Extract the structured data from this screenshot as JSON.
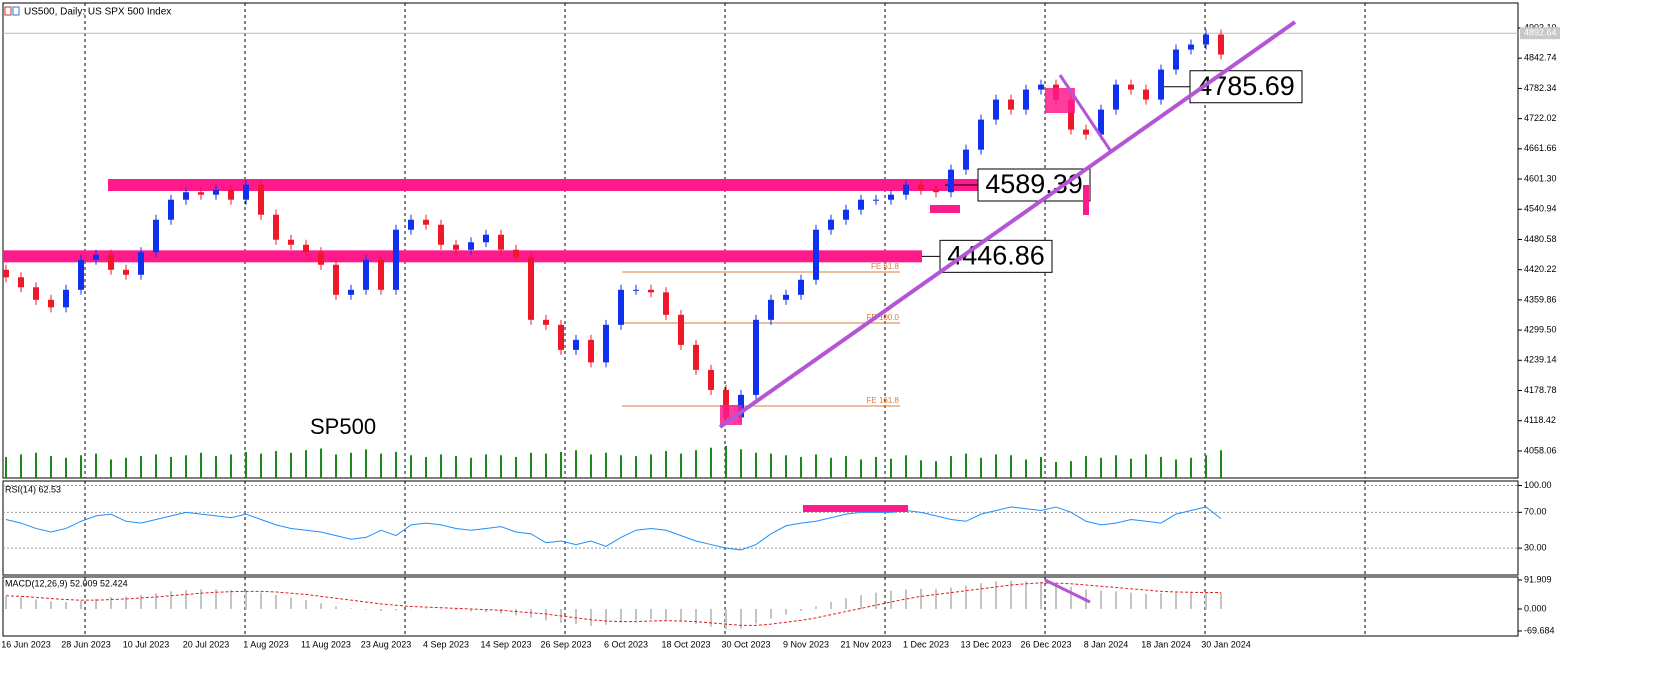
{
  "chart_data": [
    {
      "type": "candlestick",
      "title": "US500, Daily: US SPX 500 Index",
      "annotation": "SP500",
      "categories": [
        "16 Jun 2023",
        "28 Jun 2023",
        "10 Jul 2023",
        "20 Jul 2023",
        "1 Aug 2023",
        "11 Aug 2023",
        "23 Aug 2023",
        "4 Sep 2023",
        "14 Sep 2023",
        "26 Sep 2023",
        "6 Oct 2023",
        "18 Oct 2023",
        "30 Oct 2023",
        "9 Nov 2023",
        "21 Nov 2023",
        "1 Dec 2023",
        "13 Dec 2023",
        "26 Dec 2023",
        "8 Jan 2024",
        "18 Jan 2024",
        "30 Jan 2024"
      ],
      "open": [
        4420,
        4405,
        4385,
        4360,
        4345,
        4380,
        4440,
        4450,
        4420,
        4410,
        4455,
        4520,
        4560,
        4575,
        4570,
        4580,
        4560,
        4590,
        4530,
        4480,
        4470,
        4455,
        4430,
        4370,
        4380,
        4440,
        4380,
        4500,
        4520,
        4510,
        4470,
        4460,
        4475,
        4490,
        4460,
        4445,
        4320,
        4310,
        4260,
        4280,
        4235,
        4310,
        4380,
        4380,
        4375,
        4330,
        4270,
        4220,
        4180,
        4125,
        4170,
        4320,
        4360,
        4370,
        4400,
        4500,
        4520,
        4540,
        4560,
        4560,
        4570,
        4590,
        4580,
        4575,
        4620,
        4660,
        4720,
        4760,
        4740,
        4780,
        4790,
        4760,
        4700,
        4690,
        4740,
        4790,
        4780,
        4760,
        4820,
        4860,
        4870,
        4890
      ],
      "high": [
        4430,
        4415,
        4395,
        4370,
        4390,
        4450,
        4460,
        4460,
        4430,
        4465,
        4530,
        4570,
        4585,
        4585,
        4590,
        4590,
        4600,
        4600,
        4540,
        4490,
        4480,
        4465,
        4440,
        4390,
        4450,
        4450,
        4510,
        4530,
        4530,
        4520,
        4480,
        4485,
        4500,
        4500,
        4470,
        4455,
        4330,
        4320,
        4290,
        4290,
        4320,
        4390,
        4390,
        4390,
        4385,
        4340,
        4280,
        4230,
        4190,
        4180,
        4330,
        4370,
        4380,
        4410,
        4510,
        4530,
        4550,
        4570,
        4570,
        4580,
        4600,
        4600,
        4590,
        4630,
        4670,
        4730,
        4770,
        4770,
        4790,
        4800,
        4800,
        4770,
        4710,
        4750,
        4800,
        4800,
        4790,
        4830,
        4870,
        4880,
        4900,
        4900
      ],
      "low": [
        4395,
        4375,
        4350,
        4335,
        4335,
        4370,
        4430,
        4410,
        4400,
        4400,
        4445,
        4510,
        4550,
        4560,
        4560,
        4550,
        4550,
        4520,
        4470,
        4460,
        4445,
        4420,
        4360,
        4360,
        4370,
        4370,
        4370,
        4490,
        4500,
        4460,
        4450,
        4450,
        4465,
        4450,
        4435,
        4310,
        4300,
        4250,
        4250,
        4225,
        4225,
        4300,
        4370,
        4365,
        4320,
        4260,
        4210,
        4170,
        4115,
        4115,
        4160,
        4310,
        4350,
        4360,
        4390,
        4490,
        4510,
        4530,
        4550,
        4550,
        4560,
        4570,
        4565,
        4565,
        4610,
        4650,
        4710,
        4730,
        4730,
        4770,
        4750,
        4690,
        4680,
        4680,
        4730,
        4770,
        4750,
        4750,
        4810,
        4850,
        4860,
        4840
      ],
      "close": [
        4405,
        4385,
        4360,
        4345,
        4380,
        4440,
        4450,
        4420,
        4410,
        4455,
        4520,
        4560,
        4575,
        4570,
        4580,
        4560,
        4590,
        4530,
        4480,
        4470,
        4455,
        4430,
        4370,
        4380,
        4440,
        4380,
        4500,
        4520,
        4510,
        4470,
        4460,
        4475,
        4490,
        4460,
        4445,
        4320,
        4310,
        4260,
        4280,
        4235,
        4310,
        4380,
        4380,
        4375,
        4330,
        4270,
        4220,
        4180,
        4125,
        4170,
        4320,
        4360,
        4370,
        4400,
        4500,
        4520,
        4540,
        4560,
        4560,
        4570,
        4590,
        4580,
        4575,
        4620,
        4660,
        4720,
        4760,
        4740,
        4780,
        4790,
        4760,
        4700,
        4690,
        4740,
        4790,
        4780,
        4760,
        4820,
        4860,
        4870,
        4890,
        4850
      ],
      "volume": [
        25,
        28,
        30,
        26,
        24,
        27,
        29,
        22,
        24,
        26,
        28,
        25,
        27,
        30,
        26,
        28,
        31,
        29,
        32,
        30,
        33,
        35,
        28,
        30,
        34,
        29,
        31,
        27,
        25,
        28,
        26,
        24,
        28,
        27,
        25,
        30,
        29,
        31,
        33,
        28,
        30,
        27,
        26,
        28,
        32,
        29,
        33,
        36,
        38,
        34,
        30,
        29,
        27,
        25,
        28,
        24,
        26,
        22,
        25,
        23,
        27,
        21,
        20,
        26,
        29,
        24,
        28,
        27,
        22,
        25,
        19,
        20,
        26,
        24,
        27,
        23,
        28,
        25,
        22,
        24,
        27,
        33
      ],
      "up_color": "#1030f0",
      "down_color": "#f01828",
      "volume_color": "#1a8a1a",
      "ylim": [
        4004,
        4953
      ],
      "yticks": [
        {
          "value": 4903.1,
          "label": "4903.10"
        },
        4842.74,
        4782.34,
        4722.02,
        4661.66,
        {
          "value": 4601.3,
          "label": "4601.30"
        },
        4540.94,
        4480.58,
        4420.22,
        4359.86,
        {
          "value": 4299.5,
          "label": "4299.50"
        },
        4239.14,
        4178.78,
        4118.42,
        4058.06
      ],
      "last_price": 4892.64,
      "levels": [
        4785.69,
        4589.39,
        4446.86
      ],
      "fib_levels": [
        {
          "label": "FE 61.8",
          "value": 4415.6
        },
        {
          "label": "FE 100.0",
          "value": 4313.7
        },
        {
          "label": "FE 161.8",
          "value": 4147.9
        }
      ]
    },
    {
      "type": "line",
      "title": "RSI(14) 62.53",
      "color": "#1e90ff",
      "grid": true,
      "values": [
        62,
        58,
        52,
        48,
        52,
        60,
        66,
        68,
        60,
        58,
        62,
        66,
        70,
        68,
        66,
        64,
        68,
        62,
        56,
        52,
        50,
        48,
        44,
        40,
        42,
        50,
        44,
        56,
        58,
        56,
        52,
        50,
        52,
        54,
        48,
        46,
        36,
        38,
        34,
        38,
        32,
        42,
        50,
        52,
        50,
        44,
        38,
        34,
        30,
        28,
        34,
        46,
        55,
        58,
        60,
        64,
        68,
        70,
        70,
        70,
        72,
        70,
        66,
        62,
        60,
        68,
        72,
        76,
        74,
        72,
        76,
        70,
        60,
        56,
        58,
        62,
        60,
        58,
        68,
        72,
        76,
        63
      ],
      "ylim": [
        0,
        105
      ],
      "yticks": [
        {
          "value": 100,
          "label": "100.00"
        },
        {
          "value": 70,
          "label": "70.00"
        },
        {
          "value": 30,
          "label": "30.00"
        }
      ]
    },
    {
      "type": "macd",
      "title": "MACD(12,26,9) 52.009 52.424",
      "hist_color": "#c4c4c4",
      "signal_color": "#e02020",
      "histogram": [
        40,
        36,
        30,
        24,
        22,
        26,
        32,
        38,
        40,
        44,
        50,
        56,
        60,
        62,
        62,
        60,
        58,
        52,
        44,
        36,
        28,
        18,
        8,
        2,
        -2,
        -6,
        -4,
        0,
        2,
        0,
        -4,
        -8,
        -10,
        -14,
        -20,
        -28,
        -36,
        -44,
        -48,
        -54,
        -50,
        -42,
        -36,
        -32,
        -34,
        -40,
        -48,
        -56,
        -64,
        -62,
        -46,
        -30,
        -18,
        -6,
        8,
        22,
        34,
        44,
        52,
        58,
        62,
        64,
        64,
        68,
        74,
        82,
        88,
        90,
        88,
        86,
        80,
        70,
        62,
        58,
        56,
        52,
        48,
        50,
        52,
        52,
        52,
        52.009
      ],
      "signal": [
        42,
        40,
        37,
        33,
        30,
        28,
        28,
        30,
        32,
        35,
        38,
        42,
        46,
        50,
        53,
        55,
        56,
        56,
        54,
        50,
        46,
        40,
        34,
        28,
        22,
        16,
        12,
        8,
        6,
        4,
        2,
        0,
        -2,
        -4,
        -8,
        -12,
        -16,
        -22,
        -28,
        -34,
        -38,
        -40,
        -40,
        -38,
        -37,
        -38,
        -40,
        -44,
        -48,
        -52,
        -52,
        -48,
        -42,
        -36,
        -28,
        -18,
        -8,
        2,
        12,
        22,
        32,
        40,
        46,
        52,
        58,
        64,
        70,
        76,
        80,
        83,
        82,
        80,
        76,
        72,
        68,
        64,
        60,
        56,
        54,
        53,
        52,
        52.424
      ],
      "ylim": [
        -85.6,
        101.4
      ],
      "yticks": [
        91.909,
        {
          "value": 0,
          "label": "0.000"
        },
        -69.684
      ]
    }
  ]
}
